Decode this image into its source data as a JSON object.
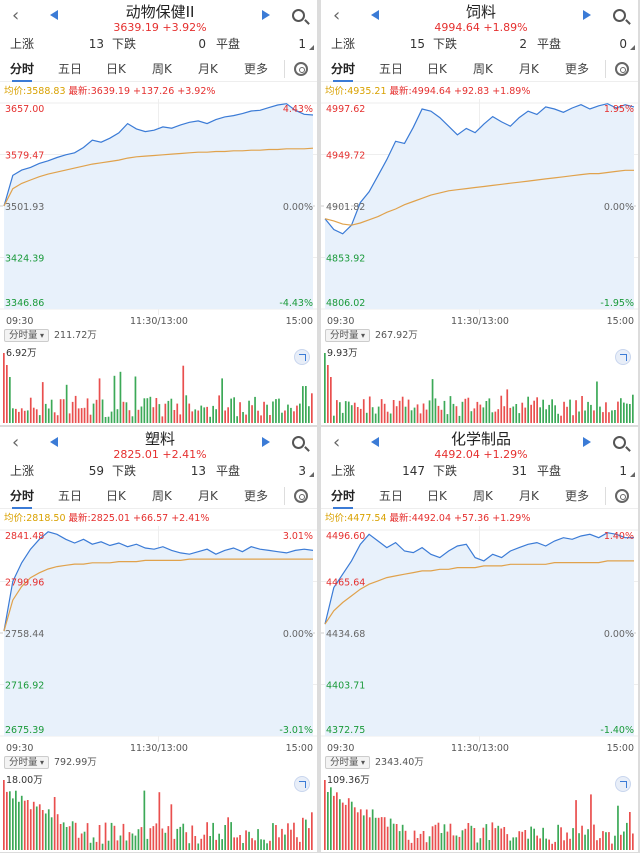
{
  "colors": {
    "up": "#e5302f",
    "down": "#1a9a3a",
    "accent": "#3b7bd6",
    "avg_line": "#e0a24c",
    "fill": "#e8f1fb"
  },
  "labels": {
    "up": "上涨",
    "down": "下跌",
    "flat": "平盘",
    "tabs": [
      "分时",
      "五日",
      "日K",
      "周K",
      "月K",
      "更多"
    ],
    "volume_button": "分时量",
    "time": [
      "09:30",
      "11:30/13:00",
      "15:00"
    ]
  },
  "panels": [
    {
      "title": "动物保健II",
      "price": "3639.19",
      "change_pct": "+3.92%",
      "up_count": "13",
      "down_count": "0",
      "flat_count": "1",
      "avg_label": "均价:3588.83",
      "last_label": "最新:3639.19 +137.26 +3.92%",
      "y_labels": [
        "3657.00",
        "3579.47",
        "3501.93",
        "3424.39",
        "3346.86"
      ],
      "pct_labels": [
        "4.43%",
        "0.00%",
        "-4.43%"
      ],
      "volume_total": "211.72万",
      "volume_max": "6.92万",
      "chart_data": {
        "type": "line",
        "ylim": [
          3346.86,
          3657.0
        ],
        "base": 3501.93,
        "series": [
          {
            "values": [
              3502,
              3548,
              3556,
              3560,
              3566,
              3570,
              3575,
              3579,
              3582,
              3590,
              3601,
              3598,
              3604,
              3612,
              3626,
              3618,
              3614,
              3616,
              3621,
              3619,
              3624,
              3628,
              3630,
              3626,
              3632,
              3636,
              3638,
              3641,
              3645,
              3646,
              3650,
              3654,
              3656,
              3646,
              3640,
              3639
            ]
          },
          {
            "values": [
              3502,
              3528,
              3536,
              3541,
              3546,
              3550,
              3553,
              3556,
              3559,
              3562,
              3565,
              3567,
              3569,
              3571,
              3574,
              3576,
              3577,
              3578,
              3579,
              3580,
              3581,
              3582,
              3583,
              3583,
              3584,
              3584,
              3585,
              3585,
              3586,
              3586,
              3587,
              3587,
              3588,
              3588,
              3588,
              3589
            ]
          }
        ]
      }
    },
    {
      "title": "饲料",
      "price": "4994.64",
      "change_pct": "+1.89%",
      "up_count": "15",
      "down_count": "2",
      "flat_count": "0",
      "avg_label": "均价:4935.21",
      "last_label": "最新:4994.64 +92.83 +1.89%",
      "y_labels": [
        "4997.62",
        "4949.72",
        "4901.82",
        "4853.92",
        "4806.02"
      ],
      "pct_labels": [
        "1.95%",
        "0.00%",
        "-1.95%"
      ],
      "volume_total": "267.92万",
      "volume_max": "9.93万",
      "chart_data": {
        "type": "line",
        "ylim": [
          4806.02,
          4997.62
        ],
        "base": 4901.82,
        "series": [
          {
            "values": [
              4890,
              4880,
              4876,
              4884,
              4905,
              4915,
              4930,
              4945,
              4962,
              4960,
              4975,
              4992,
              4990,
              4984,
              4976,
              4968,
              4974,
              4970,
              4978,
              4985,
              4980,
              4976,
              4984,
              4990,
              4987,
              4994,
              4992,
              4989,
              4993,
              4996,
              4992,
              4995,
              4997,
              4993,
              4996,
              4994
            ]
          },
          {
            "values": [
              4890,
              4888,
              4885,
              4884,
              4886,
              4889,
              4892,
              4896,
              4899,
              4903,
              4906,
              4909,
              4912,
              4914,
              4916,
              4917,
              4918,
              4919,
              4920,
              4921,
              4922,
              4923,
              4924,
              4925,
              4926,
              4927,
              4928,
              4929,
              4930,
              4931,
              4932,
              4932,
              4933,
              4934,
              4935,
              4935
            ]
          }
        ]
      }
    },
    {
      "title": "塑料",
      "price": "2825.01",
      "change_pct": "+2.41%",
      "up_count": "59",
      "down_count": "13",
      "flat_count": "3",
      "avg_label": "均价:2818.50",
      "last_label": "最新:2825.01 +66.57 +2.41%",
      "y_labels": [
        "2841.48",
        "2799.96",
        "2758.44",
        "2716.92",
        "2675.39"
      ],
      "pct_labels": [
        "3.01%",
        "0.00%",
        "-3.01%"
      ],
      "volume_total": "792.99万",
      "volume_max": "18.00万",
      "chart_data": {
        "type": "line",
        "ylim": [
          2675.39,
          2841.48
        ],
        "base": 2758.44,
        "series": [
          {
            "values": [
              2760,
              2800,
              2815,
              2826,
              2834,
              2840,
              2838,
              2834,
              2831,
              2834,
              2830,
              2832,
              2829,
              2831,
              2828,
              2830,
              2827,
              2826,
              2828,
              2825,
              2823,
              2822,
              2824,
              2826,
              2822,
              2825,
              2827,
              2824,
              2828,
              2826,
              2825,
              2824,
              2823,
              2825,
              2826,
              2825
            ]
          },
          {
            "values": [
              2760,
              2785,
              2796,
              2803,
              2807,
              2810,
              2812,
              2813,
              2814,
              2814,
              2815,
              2815,
              2815,
              2816,
              2816,
              2816,
              2817,
              2817,
              2817,
              2817,
              2817,
              2818,
              2818,
              2818,
              2818,
              2818,
              2818,
              2818,
              2818,
              2818,
              2818,
              2818,
              2818,
              2818,
              2818,
              2818
            ]
          }
        ]
      }
    },
    {
      "title": "化学制品",
      "price": "4492.04",
      "change_pct": "+1.29%",
      "up_count": "147",
      "down_count": "31",
      "flat_count": "1",
      "avg_label": "均价:4477.54",
      "last_label": "最新:4492.04 +57.36 +1.29%",
      "y_labels": [
        "4496.60",
        "4465.64",
        "4434.68",
        "4403.71",
        "4372.75"
      ],
      "pct_labels": [
        "1.40%",
        "0.00%",
        "-1.40%"
      ],
      "volume_total": "2343.40万",
      "volume_max": "109.36万",
      "chart_data": {
        "type": "line",
        "ylim": [
          4372.75,
          4496.6
        ],
        "base": 4434.68,
        "series": [
          {
            "values": [
              4440,
              4462,
              4470,
              4478,
              4488,
              4494,
              4490,
              4486,
              4489,
              4484,
              4483,
              4486,
              4482,
              4480,
              4484,
              4487,
              4488,
              4480,
              4478,
              4482,
              4480,
              4484,
              4486,
              4488,
              4489,
              4487,
              4490,
              4492,
              4491,
              4493,
              4494,
              4492,
              4495,
              4494,
              4492,
              4492
            ]
          },
          {
            "values": [
              4440,
              4448,
              4453,
              4457,
              4461,
              4464,
              4466,
              4468,
              4469,
              4470,
              4471,
              4472,
              4472,
              4473,
              4473,
              4474,
              4474,
              4474,
              4475,
              4475,
              4475,
              4476,
              4476,
              4476,
              4476,
              4476,
              4477,
              4477,
              4477,
              4477,
              4477,
              4477,
              4478,
              4478,
              4478,
              4478
            ]
          }
        ]
      }
    }
  ]
}
